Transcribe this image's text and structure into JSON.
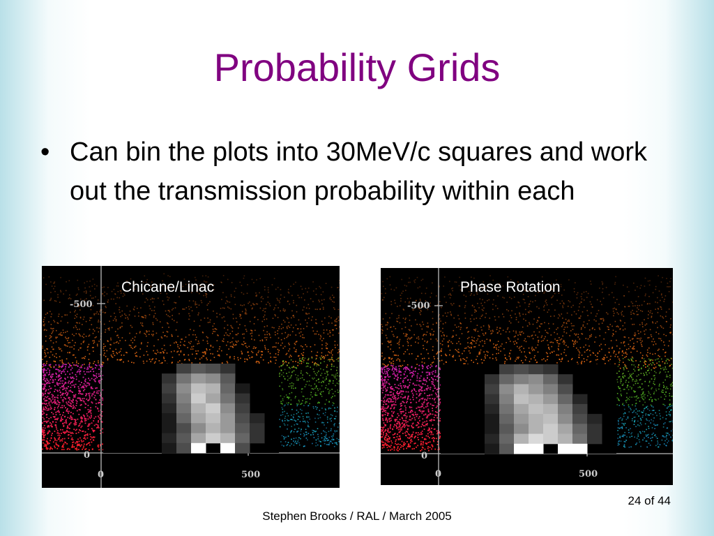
{
  "slide": {
    "title": "Probability Grids",
    "bullets": [
      "Can bin the plots into 30MeV/c squares and work out the transmission probability within each"
    ],
    "page_number": "24 of 44",
    "footer": "Stephen Brooks / RAL / March 2005"
  },
  "plots": [
    {
      "label": "Chicane/Linac",
      "ticks": {
        "y_top": "-500",
        "y_zero": "0",
        "x_zero": "0",
        "x_500": "500"
      },
      "grid_levels": [
        [
          0,
          0,
          0,
          0,
          0,
          0.25,
          0.35,
          0.3,
          0.2,
          0,
          0,
          0
        ],
        [
          0,
          0,
          0,
          0,
          0.2,
          0.45,
          0.6,
          0.55,
          0.35,
          0,
          0,
          0
        ],
        [
          0,
          0,
          0,
          0,
          0.25,
          0.55,
          0.75,
          0.7,
          0.4,
          0.1,
          0,
          0
        ],
        [
          0,
          0,
          0,
          0,
          0.2,
          0.5,
          0.8,
          0.65,
          0.45,
          0.2,
          0,
          0
        ],
        [
          0,
          0,
          0,
          0,
          0.15,
          0.45,
          0.7,
          0.8,
          0.55,
          0.25,
          0,
          0
        ],
        [
          0,
          0,
          0,
          0,
          0.1,
          0.4,
          0.65,
          0.75,
          0.6,
          0.3,
          0.15,
          0
        ],
        [
          0,
          0,
          0,
          0,
          0.1,
          0.3,
          0.55,
          0.7,
          0.6,
          0.35,
          0.2,
          0
        ],
        [
          0,
          0,
          0,
          0,
          0.15,
          0.35,
          0.65,
          0.8,
          0.7,
          0.4,
          0.2,
          0
        ],
        [
          0,
          0,
          0,
          0,
          0.1,
          0.3,
          1.0,
          0,
          1.0,
          0.3,
          0,
          0
        ]
      ]
    },
    {
      "label": "Phase Rotation",
      "ticks": {
        "y_top": "-500",
        "y_zero": "0",
        "x_zero": "0",
        "x_500": "500"
      },
      "grid_levels": [
        [
          0,
          0,
          0,
          0,
          0.25,
          0.3,
          0.25,
          0.2,
          0,
          0,
          0,
          0
        ],
        [
          0,
          0,
          0,
          0.2,
          0.4,
          0.5,
          0.55,
          0.4,
          0.2,
          0,
          0,
          0
        ],
        [
          0,
          0,
          0,
          0.25,
          0.55,
          0.7,
          0.6,
          0.5,
          0.3,
          0,
          0,
          0
        ],
        [
          0,
          0,
          0,
          0.2,
          0.5,
          0.75,
          0.7,
          0.6,
          0.4,
          0.15,
          0,
          0
        ],
        [
          0,
          0,
          0,
          0.15,
          0.45,
          0.65,
          0.75,
          0.7,
          0.5,
          0.25,
          0,
          0
        ],
        [
          0,
          0,
          0,
          0.1,
          0.4,
          0.6,
          0.7,
          0.75,
          0.55,
          0.3,
          0.15,
          0
        ],
        [
          0,
          0,
          0,
          0.1,
          0.35,
          0.55,
          0.7,
          0.8,
          0.65,
          0.4,
          0.2,
          0
        ],
        [
          0,
          0,
          0,
          0.15,
          0.4,
          0.7,
          0.85,
          0.8,
          0.7,
          0.45,
          0.2,
          0
        ],
        [
          0,
          0,
          0,
          0.1,
          0.35,
          1.0,
          1.0,
          0,
          1.0,
          1.0,
          0,
          0
        ]
      ]
    }
  ]
}
